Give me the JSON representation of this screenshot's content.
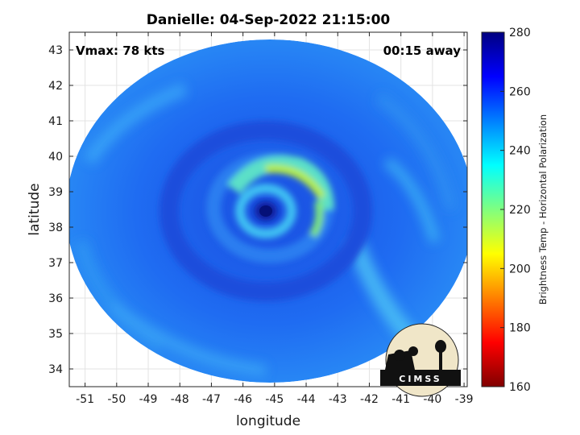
{
  "chart_data": {
    "type": "heatmap",
    "title": "Danielle: 04-Sep-2022 21:15:00",
    "xlabel": "longitude",
    "ylabel": "latitude",
    "xlim": [
      -51.5,
      -38.9
    ],
    "ylim": [
      33.5,
      43.5
    ],
    "x_ticks": [
      -51,
      -50,
      -49,
      -48,
      -47,
      -46,
      -45,
      -44,
      -43,
      -42,
      -41,
      -40,
      -39
    ],
    "y_ticks": [
      34,
      35,
      36,
      37,
      38,
      39,
      40,
      41,
      42,
      43
    ],
    "grid": true,
    "annotations": {
      "vmax": "Vmax: 78 kts",
      "time_offset": "00:15 away"
    },
    "storm_center": {
      "lon": -45.2,
      "lat": 38.5
    },
    "colorbar": {
      "label": "Brightness Temp - Horizontal Polarization",
      "range": [
        160,
        280
      ],
      "ticks": [
        160,
        180,
        200,
        220,
        240,
        260,
        280
      ],
      "colormap": "jet"
    },
    "logo": {
      "text": "CIMSS"
    }
  }
}
